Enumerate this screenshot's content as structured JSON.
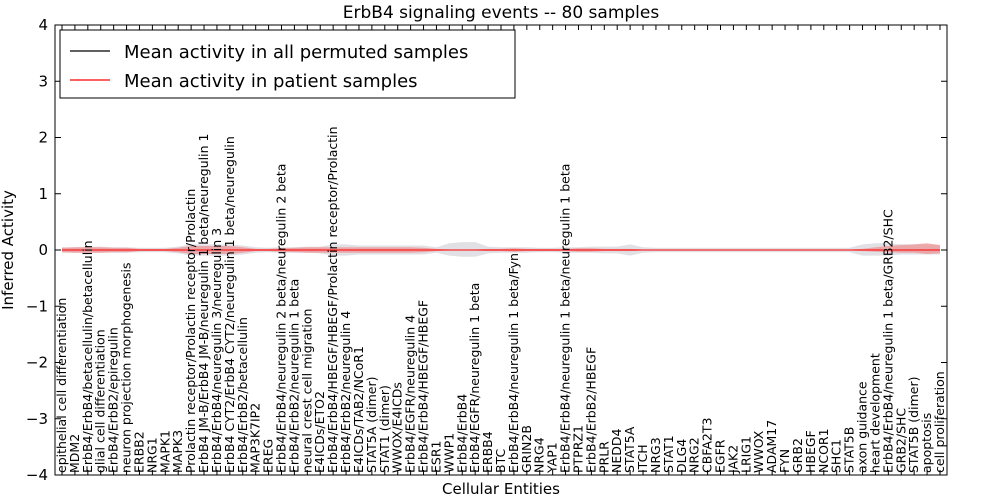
{
  "chart_data": {
    "type": "line",
    "title": "ErbB4 signaling events -- 80 samples",
    "xlabel": "Cellular Entities",
    "ylabel": "Inferred Activity",
    "ylim": [
      -4,
      4
    ],
    "yticks": [
      4,
      3,
      2,
      1,
      0,
      -1,
      -2,
      -3,
      -4
    ],
    "ytick_labels": [
      "4",
      "3",
      "2",
      "1",
      "0",
      "−1",
      "−2",
      "−3",
      "−4"
    ],
    "legend_position": "top-left",
    "grid": false,
    "colors": {
      "permuted": "#000000",
      "patient": "#ff0000",
      "patient_band": "#f08080",
      "permuted_band": "#c8c8d0"
    },
    "categories": [
      "epithelial cell differentiation",
      "MDM2",
      "ErbB4/ErbB4/betacellulin/betacellulin",
      "glial cell differentiation",
      "ErbB4/ErbB2/epiregulin",
      "neuron projection morphogenesis",
      "ERBB2",
      "NRG1",
      "MAPK1",
      "MAPK3",
      "Prolactin receptor/Prolactin receptor/Prolactin",
      "ErbB4 JM-B/ErbB4 JM-B/neuregulin 1 beta/neuregulin 1",
      "ErbB4/ErbB4/neuregulin 3/neuregulin 3",
      "ErbB4 CYT2/ErbB4 CYT2/neuregulin 1 beta/neuregulin",
      "ErbB4/ErbB2/betacellulin",
      "MAP3K7IP2",
      "EREG",
      "ErbB4/ErbB4/neuregulin 2 beta/neuregulin 2 beta",
      "ErbB4/ErbB2/neuregulin 1 beta",
      "neural crest cell migration",
      "E4ICDs/ETO2",
      "ErbB4/ErbB4/HBEGF/HBEGF/Prolactin receptor/Prolactin",
      "ErbB4/ErbB2/neuregulin 4",
      "E4ICDs/TAB2/NCoR1",
      "STAT5A (dimer)",
      "STAT1 (dimer)",
      "WWOX/E4ICDs",
      "ErbB4/EGFR/neuregulin 4",
      "ErbB4/ErbB4/HBEGF/HBEGF",
      "ESR1",
      "WWP1",
      "ErbB4/ErbB4",
      "ErbB4/EGFR/neuregulin 1 beta",
      "ERBB4",
      "BTC",
      "ErbB4/ErbB4/neuregulin 1 beta/Fyn",
      "GRIN2B",
      "NRG4",
      "YAP1",
      "ErbB4/ErbB4/neuregulin 1 beta/neuregulin 1 beta",
      "PTPRZ1",
      "ErbB4/ErbB2/HBEGF",
      "PRLR",
      "NEDD4",
      "STAT5A",
      "ITCH",
      "NRG3",
      "STAT1",
      "DLG4",
      "NRG2",
      "CBFA2T3",
      "EGFR",
      "JAK2",
      "LRIG1",
      "WWOX",
      "ADAM17",
      "FYN",
      "GRB2",
      "HBEGF",
      "NCOR1",
      "SHC1",
      "STAT5B",
      "axon guidance",
      "heart development",
      "ErbB4/ErbB4/neuregulin 1 beta/GRB2/SHC",
      "GRB2/SHC",
      "STAT5B (dimer)",
      "apoptosis",
      "cell proliferation"
    ],
    "series": [
      {
        "name": "Mean activity in all permuted samples",
        "color": "#000000",
        "values": [
          0,
          0,
          0,
          0,
          0,
          0,
          0,
          0,
          0,
          0,
          0,
          0,
          0,
          0,
          0,
          0,
          0,
          0,
          0,
          0,
          0,
          0,
          0,
          0,
          0,
          0,
          0,
          0,
          0,
          0,
          0,
          0,
          0,
          0,
          0,
          0,
          0,
          0,
          0,
          0,
          0,
          0,
          0,
          0,
          0,
          0,
          0,
          0,
          0,
          0,
          0,
          0,
          0,
          0,
          0,
          0,
          0,
          0,
          0,
          0,
          0,
          0,
          0,
          0,
          0,
          0,
          0,
          0,
          0
        ],
        "band_lower": [
          -0.05,
          -0.05,
          -0.05,
          -0.05,
          -0.05,
          -0.05,
          -0.04,
          -0.04,
          -0.04,
          -0.06,
          -0.1,
          -0.1,
          -0.1,
          -0.1,
          -0.08,
          -0.05,
          -0.04,
          -0.05,
          -0.05,
          -0.05,
          -0.06,
          -0.1,
          -0.1,
          -0.08,
          -0.08,
          -0.08,
          -0.08,
          -0.08,
          -0.08,
          -0.05,
          -0.1,
          -0.12,
          -0.12,
          -0.06,
          -0.05,
          -0.05,
          -0.05,
          -0.04,
          -0.04,
          -0.05,
          -0.05,
          -0.05,
          -0.06,
          -0.06,
          -0.1,
          -0.05,
          -0.04,
          -0.04,
          -0.04,
          -0.04,
          -0.04,
          -0.04,
          -0.04,
          -0.04,
          -0.04,
          -0.04,
          -0.04,
          -0.04,
          -0.04,
          -0.04,
          -0.04,
          -0.04,
          -0.1,
          -0.1,
          -0.1,
          -0.08,
          -0.08,
          -0.08,
          -0.08
        ],
        "band_upper": [
          0.05,
          0.05,
          0.06,
          0.06,
          0.05,
          0.05,
          0.04,
          0.04,
          0.04,
          0.06,
          0.1,
          0.1,
          0.1,
          0.1,
          0.08,
          0.05,
          0.04,
          0.05,
          0.05,
          0.06,
          0.06,
          0.1,
          0.1,
          0.08,
          0.08,
          0.08,
          0.08,
          0.08,
          0.08,
          0.05,
          0.12,
          0.14,
          0.14,
          0.06,
          0.05,
          0.05,
          0.05,
          0.04,
          0.04,
          0.05,
          0.05,
          0.06,
          0.06,
          0.06,
          0.1,
          0.05,
          0.04,
          0.04,
          0.04,
          0.04,
          0.04,
          0.04,
          0.04,
          0.04,
          0.04,
          0.04,
          0.04,
          0.04,
          0.04,
          0.04,
          0.04,
          0.04,
          0.1,
          0.12,
          0.12,
          0.1,
          0.1,
          0.1,
          0.08
        ]
      },
      {
        "name": "Mean activity in patient samples",
        "color": "#ff0000",
        "values": [
          0,
          0,
          0,
          0,
          0,
          0,
          0,
          0,
          0,
          0,
          0,
          0,
          0,
          0,
          0,
          0,
          0,
          0,
          0,
          0,
          0,
          0,
          0,
          0,
          0,
          0,
          0,
          0,
          0,
          0,
          0,
          0,
          0,
          0,
          0,
          0,
          0,
          0,
          0,
          0,
          0,
          0,
          0,
          0,
          0,
          0,
          0,
          0,
          0,
          0,
          0,
          0,
          0,
          0,
          0,
          0,
          0,
          0,
          0,
          0,
          0,
          0,
          0,
          0,
          0,
          0,
          0,
          0,
          0
        ],
        "band_lower": [
          -0.04,
          -0.05,
          -0.05,
          -0.05,
          -0.04,
          -0.04,
          -0.02,
          -0.02,
          -0.02,
          -0.04,
          -0.07,
          -0.07,
          -0.07,
          -0.07,
          -0.05,
          -0.02,
          -0.02,
          -0.03,
          -0.04,
          -0.05,
          -0.05,
          -0.05,
          -0.05,
          -0.05,
          -0.05,
          -0.05,
          -0.05,
          -0.05,
          -0.04,
          -0.02,
          -0.01,
          -0.01,
          -0.01,
          -0.02,
          -0.02,
          -0.03,
          -0.02,
          -0.02,
          -0.02,
          -0.02,
          -0.03,
          -0.03,
          -0.02,
          -0.02,
          -0.02,
          -0.01,
          -0.01,
          -0.01,
          -0.01,
          -0.01,
          -0.01,
          -0.01,
          -0.01,
          -0.01,
          -0.01,
          -0.01,
          -0.01,
          -0.01,
          -0.01,
          -0.01,
          -0.01,
          -0.01,
          -0.02,
          -0.03,
          -0.04,
          -0.05,
          -0.05,
          -0.07,
          -0.06
        ],
        "band_upper": [
          0.04,
          0.05,
          0.05,
          0.05,
          0.04,
          0.04,
          0.02,
          0.02,
          0.02,
          0.04,
          0.07,
          0.07,
          0.07,
          0.07,
          0.05,
          0.02,
          0.02,
          0.03,
          0.04,
          0.05,
          0.05,
          0.05,
          0.05,
          0.05,
          0.05,
          0.05,
          0.05,
          0.05,
          0.04,
          0.02,
          0.01,
          0.01,
          0.01,
          0.02,
          0.02,
          0.03,
          0.02,
          0.02,
          0.02,
          0.02,
          0.03,
          0.03,
          0.02,
          0.02,
          0.02,
          0.01,
          0.01,
          0.01,
          0.01,
          0.01,
          0.01,
          0.01,
          0.01,
          0.01,
          0.01,
          0.01,
          0.01,
          0.01,
          0.01,
          0.01,
          0.01,
          0.01,
          0.02,
          0.05,
          0.07,
          0.09,
          0.1,
          0.12,
          0.09
        ]
      }
    ]
  }
}
